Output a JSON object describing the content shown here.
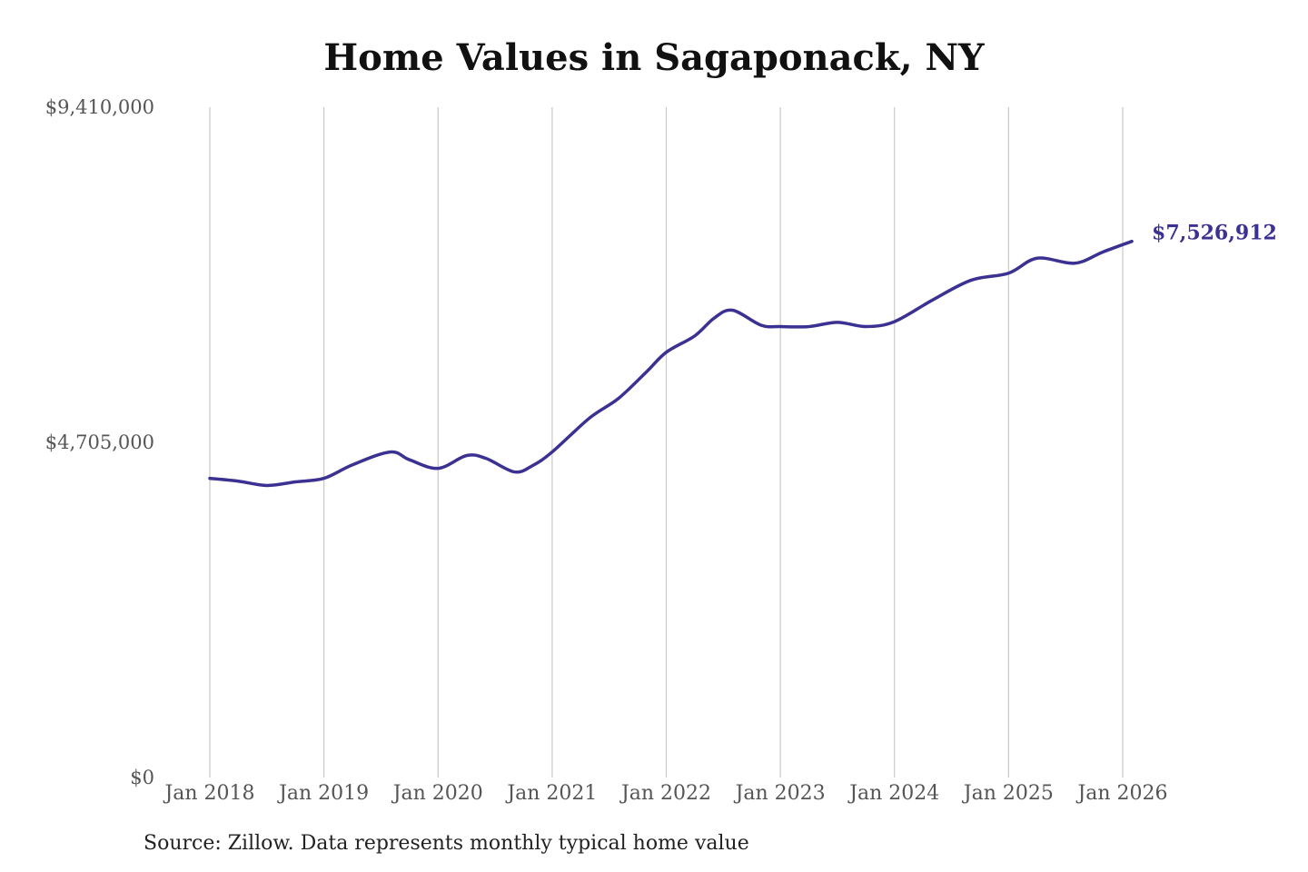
{
  "chart_data": {
    "type": "line",
    "title": "Home Values in Sagaponack, NY",
    "source": "Source: Zillow. Data represents monthly typical home value",
    "ylim": [
      0,
      9410000
    ],
    "y_ticks": [
      {
        "value": 0,
        "label": "$0"
      },
      {
        "value": 4705000,
        "label": "$4,705,000"
      },
      {
        "value": 9410000,
        "label": "$9,410,000"
      }
    ],
    "xlim": [
      2018.0,
      2026.0
    ],
    "x_ticks": [
      {
        "value": 2018,
        "label": "Jan 2018"
      },
      {
        "value": 2019,
        "label": "Jan 2019"
      },
      {
        "value": 2020,
        "label": "Jan 2020"
      },
      {
        "value": 2021,
        "label": "Jan 2021"
      },
      {
        "value": 2022,
        "label": "Jan 2022"
      },
      {
        "value": 2023,
        "label": "Jan 2023"
      },
      {
        "value": 2024,
        "label": "Jan 2024"
      },
      {
        "value": 2025,
        "label": "Jan 2025"
      },
      {
        "value": 2026,
        "label": "Jan 2026"
      }
    ],
    "grid": {
      "vertical": true,
      "horizontal": false
    },
    "line_color": "#3b3192",
    "series": [
      {
        "end_label": "$7,526,912",
        "points": [
          [
            2018.0,
            4200000
          ],
          [
            2018.25,
            4160000
          ],
          [
            2018.5,
            4100000
          ],
          [
            2018.75,
            4150000
          ],
          [
            2019.0,
            4200000
          ],
          [
            2019.25,
            4390000
          ],
          [
            2019.58,
            4570000
          ],
          [
            2019.75,
            4460000
          ],
          [
            2020.0,
            4340000
          ],
          [
            2020.25,
            4520000
          ],
          [
            2020.42,
            4480000
          ],
          [
            2020.67,
            4290000
          ],
          [
            2020.83,
            4380000
          ],
          [
            2021.0,
            4570000
          ],
          [
            2021.33,
            5050000
          ],
          [
            2021.58,
            5320000
          ],
          [
            2021.83,
            5700000
          ],
          [
            2022.0,
            5970000
          ],
          [
            2022.25,
            6200000
          ],
          [
            2022.42,
            6450000
          ],
          [
            2022.58,
            6560000
          ],
          [
            2022.83,
            6350000
          ],
          [
            2023.0,
            6330000
          ],
          [
            2023.25,
            6330000
          ],
          [
            2023.5,
            6390000
          ],
          [
            2023.75,
            6330000
          ],
          [
            2024.0,
            6400000
          ],
          [
            2024.33,
            6700000
          ],
          [
            2024.67,
            6980000
          ],
          [
            2025.0,
            7080000
          ],
          [
            2025.25,
            7290000
          ],
          [
            2025.58,
            7220000
          ],
          [
            2025.83,
            7380000
          ],
          [
            2026.08,
            7526912
          ]
        ]
      }
    ]
  }
}
